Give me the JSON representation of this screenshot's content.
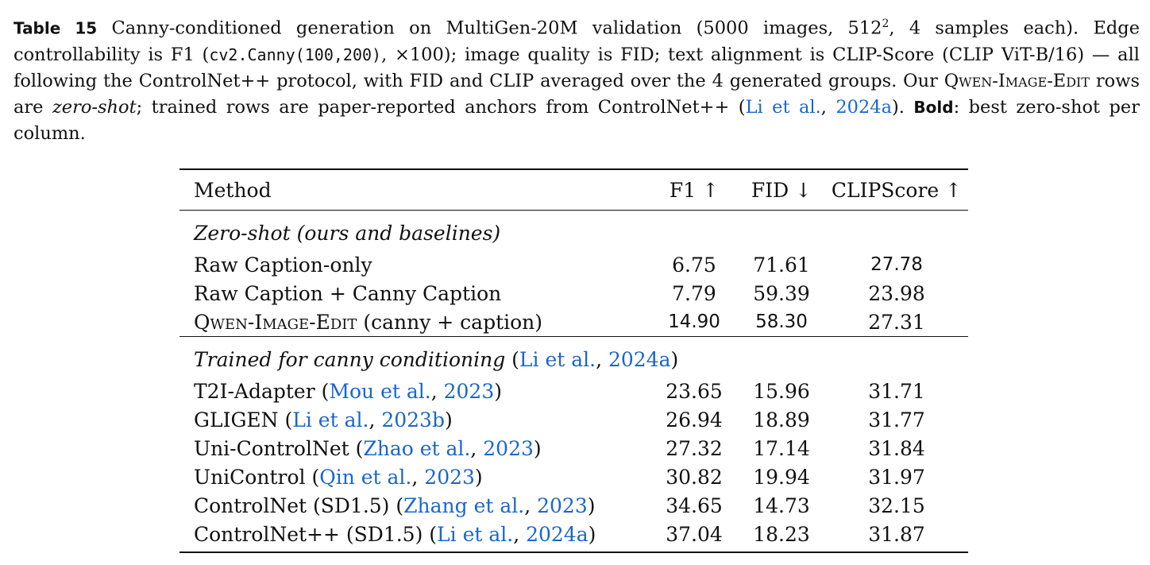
{
  "caption": {
    "label": "Table 15",
    "text_1": "Canny-conditioned generation on MultiGen-20M validation (5000 images, 512",
    "sup": "2",
    "text_2": ", 4 samples each). Edge controllability is F1 (",
    "code": "cv2.Canny(100,200)",
    "text_3": ", ×100); image quality is FID; text alignment is CLIP-Score (CLIP ViT-B/16) — all following the ControlNet++ protocol, with FID and CLIP averaged over the 4 generated groups. Our ",
    "model_name": "Qwen-Image-Edit",
    "text_4": " rows are ",
    "zero_shot": "zero-shot",
    "text_5": "; trained rows are paper-reported anchors from ControlNet++ (",
    "cite_author": "Li et al.",
    "cite_sep": ", ",
    "cite_year": "2024a",
    "text_6": "). ",
    "bold_label": "Bold",
    "text_7": ": best zero-shot per column."
  },
  "table": {
    "headers": {
      "method": "Method",
      "f1": "F1 ↑",
      "fid": "FID ↓",
      "clip": "CLIPScore ↑"
    },
    "group_zero": "Zero-shot (ours and baselines)",
    "zero_rows": [
      {
        "method": "Raw Caption-only",
        "f1": "6.75",
        "fid": "71.61",
        "clip": "27.78"
      },
      {
        "method": "Raw Caption + Canny Caption",
        "f1": "7.79",
        "fid": "59.39",
        "clip": "23.98"
      },
      {
        "method_sc": "Qwen-Image-Edit",
        "method_rest": " (canny + caption)",
        "f1": "14.90",
        "fid": "58.30",
        "clip": "27.31"
      }
    ],
    "group_trained": {
      "label": "Trained for canny conditioning",
      "cite_author": "Li et al.",
      "cite_year": "2024a"
    },
    "trained_rows": [
      {
        "name": "T2I-Adapter",
        "cite_author": "Mou et al.",
        "cite_year": "2023",
        "f1": "23.65",
        "fid": "15.96",
        "clip": "31.71"
      },
      {
        "name": "GLIGEN",
        "cite_author": "Li et al.",
        "cite_year": "2023b",
        "f1": "26.94",
        "fid": "18.89",
        "clip": "31.77"
      },
      {
        "name": "Uni-ControlNet",
        "cite_author": "Zhao et al.",
        "cite_year": "2023",
        "f1": "27.32",
        "fid": "17.14",
        "clip": "31.84"
      },
      {
        "name": "UniControl",
        "cite_author": "Qin et al.",
        "cite_year": "2023",
        "f1": "30.82",
        "fid": "19.94",
        "clip": "31.97"
      },
      {
        "name": "ControlNet (SD1.5)",
        "cite_author": "Zhang et al.",
        "cite_year": "2023",
        "f1": "34.65",
        "fid": "14.73",
        "clip": "32.15"
      },
      {
        "name": "ControlNet++ (SD1.5)",
        "cite_author": "Li et al.",
        "cite_year": "2024a",
        "f1": "37.04",
        "fid": "18.23",
        "clip": "31.87"
      }
    ],
    "colors": {
      "citation": "#1a66cc",
      "text": "#111111"
    }
  }
}
